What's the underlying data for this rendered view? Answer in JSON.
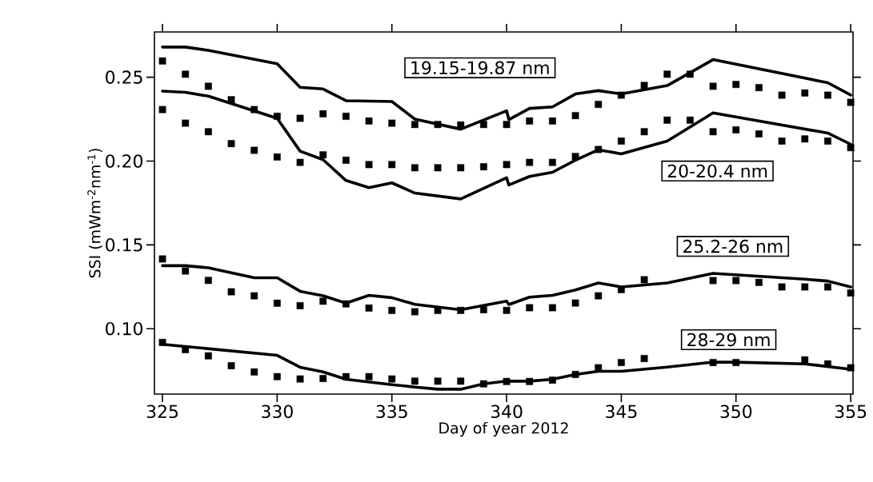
{
  "chart_data": {
    "type": "line",
    "xlabel": "Day of year 2012",
    "ylabel": "SSI (mWm$^{-2}$nm$^{-1}$)",
    "xlim": [
      324.65,
      355.1
    ],
    "ylim": [
      0.061,
      0.277
    ],
    "xticks": [
      325,
      330,
      335,
      340,
      345,
      350,
      355
    ],
    "yticks": [
      {
        "value": 0.1,
        "label": "0.10"
      },
      {
        "value": 0.15,
        "label": "0.15"
      },
      {
        "value": 0.2,
        "label": "0.20"
      },
      {
        "value": 0.25,
        "label": "0.25"
      }
    ],
    "grid": false,
    "annotations": [
      "19.15-19.87 nm",
      "20-20.4 nm",
      "25.2-26 nm",
      "28-29 nm"
    ],
    "series": [
      {
        "type": "line",
        "color": "#000000",
        "line_style": "solid",
        "x": [
          325,
          326,
          327,
          330,
          331,
          332,
          333,
          335,
          336,
          338,
          340,
          340.1,
          341,
          342,
          343,
          344,
          345,
          347,
          349,
          354,
          355
        ],
        "values": [
          0.268,
          0.268,
          0.266,
          0.258,
          0.244,
          0.243,
          0.236,
          0.2355,
          0.225,
          0.219,
          0.23,
          0.2247,
          0.2314,
          0.2323,
          0.24,
          0.242,
          0.24,
          0.245,
          0.2605,
          0.2467,
          0.2394
        ]
      },
      {
        "type": "scatter",
        "color": "#000000",
        "marker": "square",
        "x": [
          325,
          326,
          327,
          328,
          329,
          330,
          331,
          332,
          333,
          334,
          335,
          336,
          337,
          338,
          339,
          340,
          341,
          342,
          343,
          344,
          345,
          346,
          347,
          348,
          349,
          350,
          351,
          352,
          353,
          354,
          355
        ],
        "values": [
          0.2597,
          0.2518,
          0.2446,
          0.2366,
          0.2307,
          0.2267,
          0.2255,
          0.2282,
          0.2267,
          0.2239,
          0.2226,
          0.2218,
          0.2218,
          0.2215,
          0.2218,
          0.2218,
          0.2239,
          0.2239,
          0.2271,
          0.2338,
          0.2393,
          0.2451,
          0.2518,
          0.2518,
          0.2446,
          0.2457,
          0.2438,
          0.2393,
          0.2406,
          0.2393,
          0.235
        ]
      },
      {
        "type": "line",
        "color": "#000000",
        "line_style": "solid",
        "x": [
          325,
          326,
          327,
          330,
          331,
          332,
          333,
          334,
          335,
          336,
          338,
          340,
          340.1,
          341,
          342,
          343,
          344,
          345,
          347,
          349,
          354,
          355
        ],
        "values": [
          0.2417,
          0.241,
          0.2387,
          0.2255,
          0.2059,
          0.2008,
          0.1884,
          0.1841,
          0.187,
          0.1809,
          0.1774,
          0.19,
          0.1857,
          0.1908,
          0.1933,
          0.2005,
          0.2067,
          0.2043,
          0.2119,
          0.2287,
          0.2167,
          0.21
        ]
      },
      {
        "type": "scatter",
        "color": "#000000",
        "marker": "square",
        "x": [
          325,
          326,
          327,
          328,
          329,
          330,
          331,
          332,
          333,
          334,
          335,
          336,
          337,
          338,
          339,
          340,
          341,
          342,
          343,
          344,
          345,
          346,
          347,
          348,
          349,
          350,
          351,
          352,
          353,
          354,
          355
        ],
        "values": [
          0.2307,
          0.2226,
          0.2175,
          0.2104,
          0.2064,
          0.2024,
          0.1992,
          0.2037,
          0.2005,
          0.1979,
          0.1979,
          0.196,
          0.196,
          0.196,
          0.1966,
          0.1979,
          0.1992,
          0.1992,
          0.2027,
          0.2069,
          0.2119,
          0.2175,
          0.2244,
          0.2244,
          0.2175,
          0.2186,
          0.2162,
          0.2119,
          0.2132,
          0.2119,
          0.208
        ]
      },
      {
        "type": "line",
        "color": "#000000",
        "line_style": "solid",
        "x": [
          325,
          326,
          327,
          329,
          330,
          331,
          332,
          333,
          334,
          335,
          336,
          338,
          340,
          340.1,
          341,
          342,
          343,
          344,
          345,
          347,
          349,
          353,
          354,
          355
        ],
        "values": [
          0.1376,
          0.1376,
          0.1363,
          0.1304,
          0.1304,
          0.1223,
          0.1196,
          0.1152,
          0.1199,
          0.1185,
          0.1145,
          0.1113,
          0.1164,
          0.1144,
          0.1188,
          0.1199,
          0.1231,
          0.1273,
          0.1249,
          0.1273,
          0.133,
          0.1295,
          0.1284,
          0.1249
        ]
      },
      {
        "type": "scatter",
        "color": "#000000",
        "marker": "square",
        "x": [
          325,
          326,
          327,
          328,
          329,
          330,
          331,
          332,
          333,
          334,
          335,
          336,
          337,
          338,
          339,
          340,
          341,
          342,
          343,
          344,
          345,
          346,
          347,
          348,
          349,
          350,
          351,
          352,
          353,
          354,
          355
        ],
        "values": [
          0.1416,
          0.1344,
          0.1288,
          0.122,
          0.1196,
          0.1152,
          0.1137,
          0.1164,
          0.1148,
          0.1123,
          0.1109,
          0.1101,
          0.1109,
          0.1109,
          0.1113,
          0.1109,
          0.1125,
          0.1125,
          0.1153,
          0.1196,
          0.1233,
          0.1292,
          null,
          null,
          0.1287,
          0.1287,
          0.1276,
          0.1249,
          0.1249,
          0.1249,
          0.1213
        ]
      },
      {
        "type": "line",
        "color": "#000000",
        "line_style": "solid",
        "x": [
          325,
          326,
          330,
          331,
          332,
          333,
          335,
          336,
          337,
          338,
          339,
          340,
          341,
          342,
          343,
          344,
          345,
          347,
          349,
          350,
          353,
          355
        ],
        "values": [
          0.0907,
          0.0894,
          0.0841,
          0.077,
          0.0742,
          0.0698,
          0.0666,
          0.0652,
          0.0639,
          0.0639,
          0.0671,
          0.0687,
          0.0687,
          0.0698,
          0.0727,
          0.0746,
          0.0746,
          0.0771,
          0.0801,
          0.08,
          0.079,
          0.0758
        ]
      },
      {
        "type": "scatter",
        "color": "#000000",
        "marker": "square",
        "x": [
          325,
          326,
          327,
          328,
          329,
          330,
          331,
          332,
          333,
          334,
          335,
          336,
          337,
          338,
          339,
          340,
          341,
          342,
          343,
          344,
          345,
          346,
          347,
          348,
          349,
          350,
          351,
          352,
          353,
          354,
          355
        ],
        "values": [
          0.0918,
          0.0875,
          0.0838,
          0.0779,
          0.0742,
          0.0714,
          0.07,
          0.0703,
          0.0714,
          0.0714,
          0.07,
          0.0687,
          0.0687,
          0.0687,
          0.0671,
          0.0685,
          0.0685,
          0.0693,
          0.0727,
          0.0767,
          0.0798,
          0.0822,
          null,
          null,
          0.0798,
          0.0798,
          null,
          null,
          0.0814,
          0.079,
          0.0767
        ]
      }
    ]
  }
}
